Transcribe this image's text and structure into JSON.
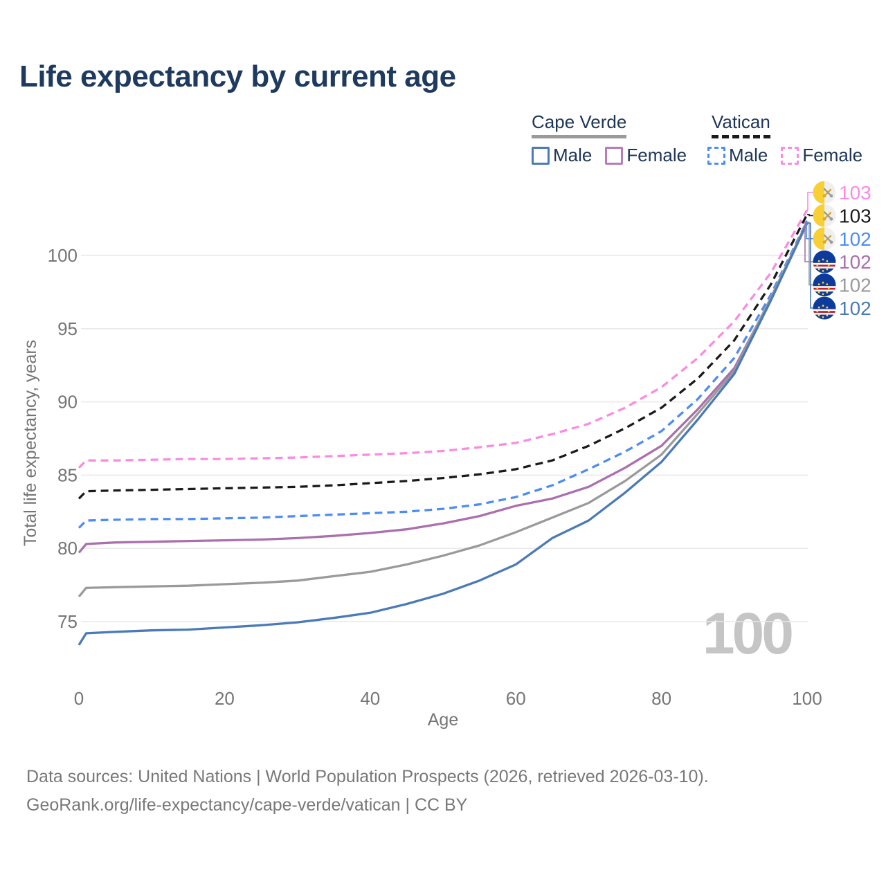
{
  "title": "Life expectancy by current age",
  "legend": {
    "groups": [
      {
        "id": "cape-verde",
        "label": "Cape Verde",
        "line_style": "solid",
        "line_color": "#9a9a9a",
        "items": [
          {
            "id": "cape-verde-male",
            "label": "Male",
            "color": "#4a7ab8",
            "style": "solid"
          },
          {
            "id": "cape-verde-female",
            "label": "Female",
            "color": "#b87cb8",
            "style": "solid"
          }
        ]
      },
      {
        "id": "vatican",
        "label": "Vatican",
        "line_style": "dashed",
        "line_color": "#1a1a1a",
        "items": [
          {
            "id": "vatican-male",
            "label": "Male",
            "color": "#4c8df2",
            "style": "dashed"
          },
          {
            "id": "vatican-female",
            "label": "Female",
            "color": "#fb8be0",
            "style": "dashed"
          }
        ]
      }
    ]
  },
  "chart_data": {
    "type": "line",
    "title": "Life expectancy by current age",
    "xlabel": "Age",
    "ylabel": "Total life expectancy, years",
    "xlim": [
      0,
      100
    ],
    "ylim": [
      73,
      103.5
    ],
    "x_ticks": [
      0,
      20,
      40,
      60,
      80,
      100
    ],
    "y_ticks": [
      75,
      80,
      85,
      90,
      95,
      100
    ],
    "grid": "horizontal-only",
    "legend_position": "top-right",
    "watermark": "100",
    "series": [
      {
        "id": "vatican-female",
        "country": "Vatican",
        "sex": "Female",
        "color": "#fb8be0",
        "dash": true,
        "points": [
          [
            0,
            85.5
          ],
          [
            1,
            86.0
          ],
          [
            5,
            86.0
          ],
          [
            10,
            86.05
          ],
          [
            15,
            86.1
          ],
          [
            20,
            86.1
          ],
          [
            25,
            86.15
          ],
          [
            30,
            86.2
          ],
          [
            35,
            86.3
          ],
          [
            40,
            86.4
          ],
          [
            45,
            86.5
          ],
          [
            50,
            86.65
          ],
          [
            55,
            86.9
          ],
          [
            60,
            87.2
          ],
          [
            65,
            87.8
          ],
          [
            70,
            88.5
          ],
          [
            75,
            89.6
          ],
          [
            80,
            91.0
          ],
          [
            85,
            93.0
          ],
          [
            90,
            95.5
          ],
          [
            95,
            98.8
          ],
          [
            100,
            103.1
          ]
        ]
      },
      {
        "id": "vatican-all",
        "country": "Vatican",
        "sex": "Both sexes",
        "color": "#1a1a1a",
        "dash": true,
        "points": [
          [
            0,
            83.4
          ],
          [
            1,
            83.9
          ],
          [
            5,
            83.95
          ],
          [
            10,
            84.0
          ],
          [
            15,
            84.05
          ],
          [
            20,
            84.1
          ],
          [
            25,
            84.15
          ],
          [
            30,
            84.2
          ],
          [
            35,
            84.3
          ],
          [
            40,
            84.45
          ],
          [
            45,
            84.6
          ],
          [
            50,
            84.8
          ],
          [
            55,
            85.05
          ],
          [
            60,
            85.4
          ],
          [
            65,
            86.0
          ],
          [
            70,
            87.0
          ],
          [
            75,
            88.2
          ],
          [
            80,
            89.6
          ],
          [
            85,
            91.6
          ],
          [
            90,
            94.2
          ],
          [
            95,
            98.0
          ],
          [
            100,
            102.8
          ]
        ]
      },
      {
        "id": "vatican-male",
        "country": "Vatican",
        "sex": "Male",
        "color": "#4c8df2",
        "dash": true,
        "points": [
          [
            0,
            81.4
          ],
          [
            1,
            81.9
          ],
          [
            5,
            81.95
          ],
          [
            10,
            82.0
          ],
          [
            15,
            82.0
          ],
          [
            20,
            82.05
          ],
          [
            25,
            82.1
          ],
          [
            30,
            82.2
          ],
          [
            35,
            82.3
          ],
          [
            40,
            82.4
          ],
          [
            45,
            82.5
          ],
          [
            50,
            82.7
          ],
          [
            55,
            83.0
          ],
          [
            60,
            83.5
          ],
          [
            65,
            84.3
          ],
          [
            70,
            85.4
          ],
          [
            75,
            86.6
          ],
          [
            80,
            88.0
          ],
          [
            85,
            90.2
          ],
          [
            90,
            93.0
          ],
          [
            95,
            97.3
          ],
          [
            100,
            102.35
          ]
        ]
      },
      {
        "id": "cape-verde-female",
        "country": "Cape Verde",
        "sex": "Female",
        "color": "#ab6fad",
        "dash": false,
        "points": [
          [
            0,
            79.7
          ],
          [
            1,
            80.3
          ],
          [
            5,
            80.4
          ],
          [
            10,
            80.45
          ],
          [
            15,
            80.5
          ],
          [
            20,
            80.55
          ],
          [
            25,
            80.6
          ],
          [
            30,
            80.7
          ],
          [
            35,
            80.85
          ],
          [
            40,
            81.05
          ],
          [
            45,
            81.3
          ],
          [
            50,
            81.7
          ],
          [
            55,
            82.2
          ],
          [
            60,
            82.9
          ],
          [
            65,
            83.4
          ],
          [
            70,
            84.2
          ],
          [
            75,
            85.5
          ],
          [
            80,
            87.0
          ],
          [
            85,
            89.5
          ],
          [
            90,
            92.3
          ],
          [
            95,
            97.0
          ],
          [
            100,
            102.3
          ]
        ]
      },
      {
        "id": "cape-verde-all",
        "country": "Cape Verde",
        "sex": "Both sexes",
        "color": "#9a9a9a",
        "dash": false,
        "points": [
          [
            0,
            76.7
          ],
          [
            1,
            77.3
          ],
          [
            5,
            77.35
          ],
          [
            10,
            77.4
          ],
          [
            15,
            77.45
          ],
          [
            20,
            77.55
          ],
          [
            25,
            77.65
          ],
          [
            30,
            77.8
          ],
          [
            35,
            78.1
          ],
          [
            40,
            78.4
          ],
          [
            45,
            78.9
          ],
          [
            50,
            79.5
          ],
          [
            55,
            80.2
          ],
          [
            60,
            81.1
          ],
          [
            65,
            82.1
          ],
          [
            70,
            83.1
          ],
          [
            75,
            84.6
          ],
          [
            80,
            86.4
          ],
          [
            85,
            89.2
          ],
          [
            90,
            92.1
          ],
          [
            95,
            97.1
          ],
          [
            100,
            102.25
          ]
        ]
      },
      {
        "id": "cape-verde-male",
        "country": "Cape Verde",
        "sex": "Male",
        "color": "#4a7ab8",
        "dash": false,
        "points": [
          [
            0,
            73.4
          ],
          [
            1,
            74.2
          ],
          [
            5,
            74.3
          ],
          [
            10,
            74.4
          ],
          [
            15,
            74.45
          ],
          [
            20,
            74.6
          ],
          [
            25,
            74.75
          ],
          [
            30,
            74.95
          ],
          [
            35,
            75.25
          ],
          [
            40,
            75.6
          ],
          [
            45,
            76.2
          ],
          [
            50,
            76.9
          ],
          [
            55,
            77.8
          ],
          [
            60,
            78.9
          ],
          [
            65,
            80.7
          ],
          [
            70,
            81.9
          ],
          [
            75,
            83.8
          ],
          [
            80,
            85.9
          ],
          [
            85,
            88.8
          ],
          [
            90,
            91.9
          ],
          [
            95,
            96.9
          ],
          [
            100,
            102.2
          ]
        ]
      }
    ],
    "end_labels": [
      {
        "series": "vatican-female",
        "value_label": "103",
        "color": "#f98ae8",
        "flag": "vatican"
      },
      {
        "series": "vatican-all",
        "value_label": "103",
        "color": "#1a1a1a",
        "flag": "vatican"
      },
      {
        "series": "vatican-male",
        "value_label": "102",
        "color": "#4c8df2",
        "flag": "vatican"
      },
      {
        "series": "cape-verde-female",
        "value_label": "102",
        "color": "#ab6fad",
        "flag": "cape-verde"
      },
      {
        "series": "cape-verde-all",
        "value_label": "102",
        "color": "#9a9a9a",
        "flag": "cape-verde"
      },
      {
        "series": "cape-verde-male",
        "value_label": "102",
        "color": "#4a7ab8",
        "flag": "cape-verde"
      }
    ]
  },
  "footer": {
    "line1": "Data sources: United Nations | World Population Prospects (2026, retrieved 2026-03-10).",
    "line2": "GeoRank.org/life-expectancy/cape-verde/vatican | CC BY"
  }
}
